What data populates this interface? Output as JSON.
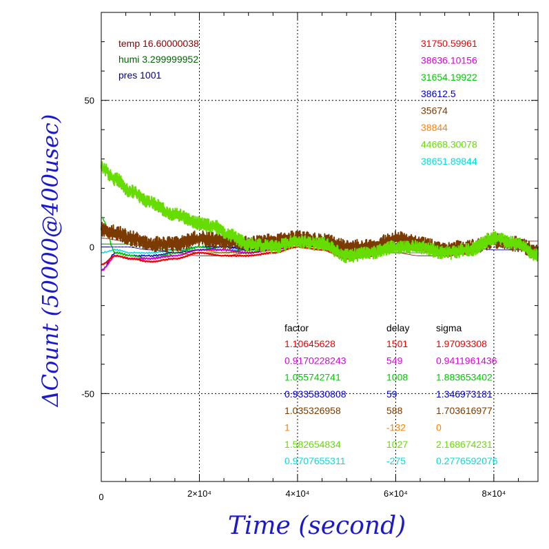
{
  "chart_data": {
    "type": "line",
    "xlabel": "Time (second)",
    "ylabel": "ΔCount (50000@400usec)",
    "xlim": [
      0,
      89000
    ],
    "ylim": [
      -80,
      80
    ],
    "grid": true,
    "x_ticks": [
      {
        "value": 0,
        "label": "0"
      },
      {
        "value": 20000,
        "label": "2×10⁴"
      },
      {
        "value": 40000,
        "label": "4×10⁴"
      },
      {
        "value": 60000,
        "label": "6×10⁴"
      },
      {
        "value": 80000,
        "label": "8×10⁴"
      }
    ],
    "y_ticks": [
      {
        "value": 50,
        "label": "50"
      },
      {
        "value": 0,
        "label": "0"
      },
      {
        "value": -50,
        "label": "-50"
      }
    ],
    "env_labels": [
      {
        "text": "temp 16.60000038",
        "color": "#8b0000"
      },
      {
        "text": "humi 3.299999952",
        "color": "#006400"
      },
      {
        "text": "pres 1001",
        "color": "#00008b"
      }
    ],
    "series_labels": [
      {
        "text": "31750.59961",
        "color": "#ee0000"
      },
      {
        "text": "38636.10156",
        "color": "#dd00dd"
      },
      {
        "text": "31654.19922",
        "color": "#00cc00"
      },
      {
        "text": "38612.5",
        "color": "#0000cc"
      },
      {
        "text": "35674",
        "color": "#7a3a00"
      },
      {
        "text": "38844",
        "color": "#ff7f00"
      },
      {
        "text": "44668.30078",
        "color": "#66dd00"
      },
      {
        "text": "38651.89844",
        "color": "#00dddd"
      }
    ],
    "table": {
      "headers": [
        "factor",
        "delay",
        "sigma"
      ],
      "rows": [
        {
          "factor": "1.10645628",
          "delay": "1501",
          "sigma": "1.97093308",
          "color": "#ee0000"
        },
        {
          "factor": "0.9170228243",
          "delay": "549",
          "sigma": "0.9411961436",
          "color": "#dd00dd"
        },
        {
          "factor": "1.055742741",
          "delay": "1008",
          "sigma": "1.883653402",
          "color": "#00cc00"
        },
        {
          "factor": "0.9335830808",
          "delay": "59",
          "sigma": "1.346973181",
          "color": "#0000cc"
        },
        {
          "factor": "1.035326958",
          "delay": "588",
          "sigma": "1.703616977",
          "color": "#7a3a00"
        },
        {
          "factor": "1",
          "delay": "-132",
          "sigma": "0",
          "color": "#ff7f00"
        },
        {
          "factor": "1.582654834",
          "delay": "1027",
          "sigma": "2.168674231",
          "color": "#66dd00"
        },
        {
          "factor": "0.9707655311",
          "delay": "-275",
          "sigma": "0.2776592076",
          "color": "#00dddd"
        }
      ]
    },
    "series": [
      {
        "color": "#00dddd",
        "width": 1.5,
        "noise": 0.3,
        "x": [
          0,
          3000,
          6000,
          10000,
          15000,
          20000,
          25000,
          30000,
          35000,
          40000,
          45000,
          50000,
          55000,
          60000,
          65000,
          70000,
          75000,
          80000,
          85000,
          89000
        ],
        "y": [
          -2,
          -1,
          -2,
          -2,
          -1,
          0,
          -1,
          -1,
          -1,
          1,
          0,
          -3,
          -2,
          0,
          -1,
          -1,
          0,
          1,
          0,
          -3
        ]
      },
      {
        "color": "#ff7f00",
        "width": 1.5,
        "noise": 0.3,
        "x": [
          0,
          3000,
          6000,
          10000,
          15000,
          20000,
          25000,
          30000,
          35000,
          40000,
          45000,
          50000,
          55000,
          60000,
          65000,
          70000,
          75000,
          80000,
          85000,
          89000
        ],
        "y": [
          -6,
          -3,
          -4,
          -4,
          -3,
          -1,
          -2,
          -2,
          -1,
          1,
          0,
          -4,
          -3,
          0,
          -1,
          -2,
          -1,
          2,
          0,
          -4
        ]
      },
      {
        "color": "#0000cc",
        "width": 1.5,
        "noise": 0.3,
        "x": [
          0,
          3000,
          6000,
          10000,
          15000,
          20000,
          25000,
          30000,
          35000,
          40000,
          45000,
          50000,
          55000,
          60000,
          65000,
          70000,
          75000,
          80000,
          85000,
          89000
        ],
        "y": [
          -8,
          -2,
          -3,
          -3,
          -2,
          0,
          0,
          -1,
          0,
          2,
          1,
          -3,
          -2,
          1,
          0,
          -2,
          -1,
          2,
          1,
          -3
        ]
      },
      {
        "color": "#00cc00",
        "width": 1.5,
        "noise": 0.5,
        "x": [
          0,
          3000,
          6000,
          10000,
          15000,
          20000,
          25000,
          30000,
          35000,
          40000,
          45000,
          50000,
          55000,
          60000,
          65000,
          70000,
          75000,
          80000,
          85000,
          89000
        ],
        "y": [
          10,
          -2,
          -3,
          -4,
          -2,
          0,
          -1,
          -2,
          0,
          2,
          1,
          -4,
          -3,
          0,
          -1,
          -3,
          -2,
          2,
          0,
          -4
        ]
      },
      {
        "color": "#dd00dd",
        "width": 2,
        "noise": 0.3,
        "x": [
          0,
          3000,
          6000,
          10000,
          15000,
          20000,
          25000,
          30000,
          35000,
          40000,
          45000,
          50000,
          55000,
          60000,
          65000,
          70000,
          75000,
          80000,
          85000,
          89000
        ],
        "y": [
          -8,
          -3,
          -4,
          -4,
          -3,
          -1,
          -1,
          -2,
          -1,
          1,
          1,
          -3,
          -3,
          0,
          0,
          -3,
          -2,
          2,
          1,
          -3
        ]
      },
      {
        "color": "#8b0000",
        "width": 0.8,
        "noise": 0,
        "x": [
          0,
          5000,
          10000,
          15000,
          20000,
          25000,
          30000,
          35000,
          40000,
          45000,
          50000,
          55000,
          60000,
          65000,
          70000,
          75000,
          80000,
          85000,
          89000
        ],
        "y": [
          3,
          2,
          0,
          -2,
          -3,
          -3,
          -2,
          -1,
          0,
          1,
          0,
          -1,
          -2,
          -3,
          -3,
          -1,
          1,
          2,
          2
        ]
      },
      {
        "color": "#006400",
        "width": 0.8,
        "noise": 0,
        "x": [
          0,
          5000,
          10000,
          15000,
          20000,
          25000,
          30000,
          35000,
          40000,
          45000,
          50000,
          55000,
          60000,
          65000,
          70000,
          75000,
          80000,
          85000,
          89000
        ],
        "y": [
          1,
          1,
          0,
          -1,
          -2,
          -2,
          -1,
          0,
          1,
          0,
          -1,
          -2,
          -2,
          -2,
          -1,
          0,
          1,
          0,
          -1
        ]
      },
      {
        "color": "#00008b",
        "width": 0.8,
        "noise": 0,
        "x": [
          0,
          5000,
          10000,
          15000,
          20000,
          25000,
          30000,
          35000,
          40000,
          45000,
          50000,
          55000,
          60000,
          65000,
          70000,
          75000,
          80000,
          85000,
          89000
        ],
        "y": [
          0,
          0,
          -1,
          -2,
          -1,
          0,
          0,
          0,
          0,
          -1,
          -2,
          -2,
          -1,
          0,
          0,
          0,
          -1,
          -1,
          -2
        ]
      },
      {
        "color": "#7a3a00",
        "width": 2,
        "noise": 2.6,
        "x": [
          0,
          3000,
          6000,
          10000,
          15000,
          20000,
          25000,
          30000,
          35000,
          40000,
          45000,
          50000,
          55000,
          60000,
          65000,
          70000,
          75000,
          80000,
          85000,
          89000
        ],
        "y": [
          6,
          5,
          3,
          1,
          1,
          3,
          2,
          1,
          2,
          3,
          2,
          0,
          0,
          3,
          1,
          -1,
          0,
          2,
          1,
          -2
        ]
      },
      {
        "color": "#ee0000",
        "width": 2.2,
        "noise": 0.2,
        "x": [
          0,
          3000,
          6000,
          10000,
          15000,
          20000,
          25000,
          30000,
          35000,
          40000,
          45000,
          50000,
          55000,
          60000,
          65000,
          70000,
          75000,
          80000,
          85000,
          89000
        ],
        "y": [
          -6,
          -3,
          -4,
          -5,
          -4,
          -2,
          -3,
          -3,
          -2,
          0,
          -1,
          -4,
          -3,
          0,
          -1,
          -3,
          -2,
          3,
          1,
          -3
        ]
      },
      {
        "color": "#66dd00",
        "width": 2,
        "noise": 2.3,
        "x": [
          0,
          3000,
          6000,
          10000,
          15000,
          20000,
          23000,
          26000,
          30000,
          35000,
          40000,
          45000,
          50000,
          55000,
          60000,
          65000,
          70000,
          75000,
          80000,
          85000,
          89000
        ],
        "y": [
          27,
          23,
          19,
          15,
          11,
          8,
          7,
          4,
          1,
          0,
          2,
          1,
          -3,
          -2,
          0,
          0,
          -2,
          -1,
          3,
          1,
          -3
        ]
      }
    ]
  }
}
